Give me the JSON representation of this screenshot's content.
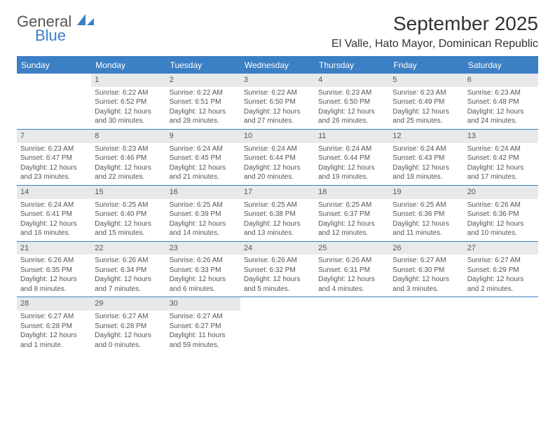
{
  "logo": {
    "primary": "General",
    "secondary": "Blue"
  },
  "title": "September 2025",
  "subtitle": "El Valle, Hato Mayor, Dominican Republic",
  "colors": {
    "accent": "#3b7fc4",
    "header_bg": "#3b7fc4",
    "daybar_bg": "#e7e9eb",
    "text": "#333333",
    "body_text": "#555555",
    "bg": "#ffffff"
  },
  "typography": {
    "title_fontsize": 28,
    "subtitle_fontsize": 16,
    "dayheader_fontsize": 12,
    "cell_fontsize": 10
  },
  "dayNames": [
    "Sunday",
    "Monday",
    "Tuesday",
    "Wednesday",
    "Thursday",
    "Friday",
    "Saturday"
  ],
  "weeks": [
    [
      null,
      {
        "n": "1",
        "sr": "Sunrise: 6:22 AM",
        "ss": "Sunset: 6:52 PM",
        "dl": "Daylight: 12 hours and 30 minutes."
      },
      {
        "n": "2",
        "sr": "Sunrise: 6:22 AM",
        "ss": "Sunset: 6:51 PM",
        "dl": "Daylight: 12 hours and 28 minutes."
      },
      {
        "n": "3",
        "sr": "Sunrise: 6:22 AM",
        "ss": "Sunset: 6:50 PM",
        "dl": "Daylight: 12 hours and 27 minutes."
      },
      {
        "n": "4",
        "sr": "Sunrise: 6:23 AM",
        "ss": "Sunset: 6:50 PM",
        "dl": "Daylight: 12 hours and 26 minutes."
      },
      {
        "n": "5",
        "sr": "Sunrise: 6:23 AM",
        "ss": "Sunset: 6:49 PM",
        "dl": "Daylight: 12 hours and 25 minutes."
      },
      {
        "n": "6",
        "sr": "Sunrise: 6:23 AM",
        "ss": "Sunset: 6:48 PM",
        "dl": "Daylight: 12 hours and 24 minutes."
      }
    ],
    [
      {
        "n": "7",
        "sr": "Sunrise: 6:23 AM",
        "ss": "Sunset: 6:47 PM",
        "dl": "Daylight: 12 hours and 23 minutes."
      },
      {
        "n": "8",
        "sr": "Sunrise: 6:23 AM",
        "ss": "Sunset: 6:46 PM",
        "dl": "Daylight: 12 hours and 22 minutes."
      },
      {
        "n": "9",
        "sr": "Sunrise: 6:24 AM",
        "ss": "Sunset: 6:45 PM",
        "dl": "Daylight: 12 hours and 21 minutes."
      },
      {
        "n": "10",
        "sr": "Sunrise: 6:24 AM",
        "ss": "Sunset: 6:44 PM",
        "dl": "Daylight: 12 hours and 20 minutes."
      },
      {
        "n": "11",
        "sr": "Sunrise: 6:24 AM",
        "ss": "Sunset: 6:44 PM",
        "dl": "Daylight: 12 hours and 19 minutes."
      },
      {
        "n": "12",
        "sr": "Sunrise: 6:24 AM",
        "ss": "Sunset: 6:43 PM",
        "dl": "Daylight: 12 hours and 18 minutes."
      },
      {
        "n": "13",
        "sr": "Sunrise: 6:24 AM",
        "ss": "Sunset: 6:42 PM",
        "dl": "Daylight: 12 hours and 17 minutes."
      }
    ],
    [
      {
        "n": "14",
        "sr": "Sunrise: 6:24 AM",
        "ss": "Sunset: 6:41 PM",
        "dl": "Daylight: 12 hours and 16 minutes."
      },
      {
        "n": "15",
        "sr": "Sunrise: 6:25 AM",
        "ss": "Sunset: 6:40 PM",
        "dl": "Daylight: 12 hours and 15 minutes."
      },
      {
        "n": "16",
        "sr": "Sunrise: 6:25 AM",
        "ss": "Sunset: 6:39 PM",
        "dl": "Daylight: 12 hours and 14 minutes."
      },
      {
        "n": "17",
        "sr": "Sunrise: 6:25 AM",
        "ss": "Sunset: 6:38 PM",
        "dl": "Daylight: 12 hours and 13 minutes."
      },
      {
        "n": "18",
        "sr": "Sunrise: 6:25 AM",
        "ss": "Sunset: 6:37 PM",
        "dl": "Daylight: 12 hours and 12 minutes."
      },
      {
        "n": "19",
        "sr": "Sunrise: 6:25 AM",
        "ss": "Sunset: 6:36 PM",
        "dl": "Daylight: 12 hours and 11 minutes."
      },
      {
        "n": "20",
        "sr": "Sunrise: 6:26 AM",
        "ss": "Sunset: 6:36 PM",
        "dl": "Daylight: 12 hours and 10 minutes."
      }
    ],
    [
      {
        "n": "21",
        "sr": "Sunrise: 6:26 AM",
        "ss": "Sunset: 6:35 PM",
        "dl": "Daylight: 12 hours and 8 minutes."
      },
      {
        "n": "22",
        "sr": "Sunrise: 6:26 AM",
        "ss": "Sunset: 6:34 PM",
        "dl": "Daylight: 12 hours and 7 minutes."
      },
      {
        "n": "23",
        "sr": "Sunrise: 6:26 AM",
        "ss": "Sunset: 6:33 PM",
        "dl": "Daylight: 12 hours and 6 minutes."
      },
      {
        "n": "24",
        "sr": "Sunrise: 6:26 AM",
        "ss": "Sunset: 6:32 PM",
        "dl": "Daylight: 12 hours and 5 minutes."
      },
      {
        "n": "25",
        "sr": "Sunrise: 6:26 AM",
        "ss": "Sunset: 6:31 PM",
        "dl": "Daylight: 12 hours and 4 minutes."
      },
      {
        "n": "26",
        "sr": "Sunrise: 6:27 AM",
        "ss": "Sunset: 6:30 PM",
        "dl": "Daylight: 12 hours and 3 minutes."
      },
      {
        "n": "27",
        "sr": "Sunrise: 6:27 AM",
        "ss": "Sunset: 6:29 PM",
        "dl": "Daylight: 12 hours and 2 minutes."
      }
    ],
    [
      {
        "n": "28",
        "sr": "Sunrise: 6:27 AM",
        "ss": "Sunset: 6:28 PM",
        "dl": "Daylight: 12 hours and 1 minute."
      },
      {
        "n": "29",
        "sr": "Sunrise: 6:27 AM",
        "ss": "Sunset: 6:28 PM",
        "dl": "Daylight: 12 hours and 0 minutes."
      },
      {
        "n": "30",
        "sr": "Sunrise: 6:27 AM",
        "ss": "Sunset: 6:27 PM",
        "dl": "Daylight: 11 hours and 59 minutes."
      },
      null,
      null,
      null,
      null
    ]
  ]
}
